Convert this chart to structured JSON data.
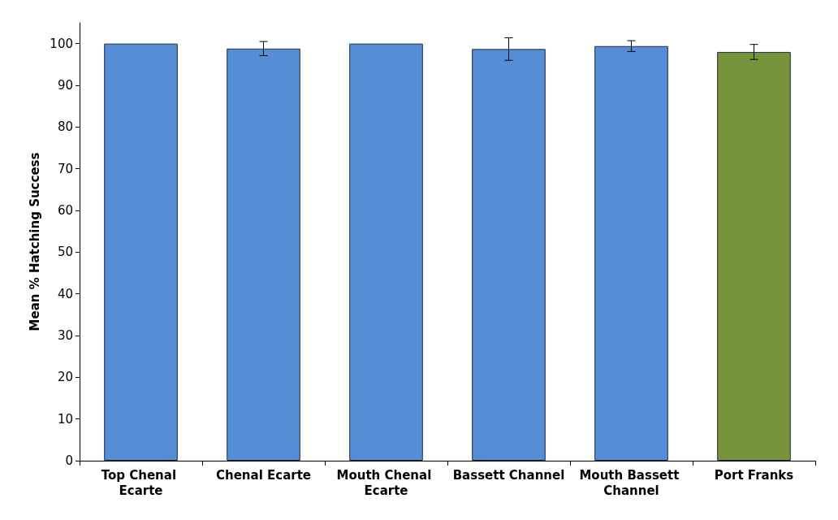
{
  "chart_data": {
    "type": "bar",
    "ylabel": "Mean % Hatching Success",
    "categories": [
      "Top Chenal Ecarte",
      "Chenal Ecarte",
      "Mouth Chenal Ecarte",
      "Bassett Channel",
      "Mouth Bassett Channel",
      "Port Franks"
    ],
    "values": [
      100,
      98.8,
      100,
      98.7,
      99.4,
      98.0
    ],
    "errors": [
      null,
      1.7,
      null,
      2.7,
      1.3,
      1.8
    ],
    "colors": [
      "#558ed5",
      "#558ed5",
      "#558ed5",
      "#558ed5",
      "#558ed5",
      "#77933c"
    ],
    "ylim": [
      0,
      105
    ],
    "yticks": [
      0,
      10,
      20,
      30,
      40,
      50,
      60,
      70,
      80,
      90,
      100
    ]
  }
}
